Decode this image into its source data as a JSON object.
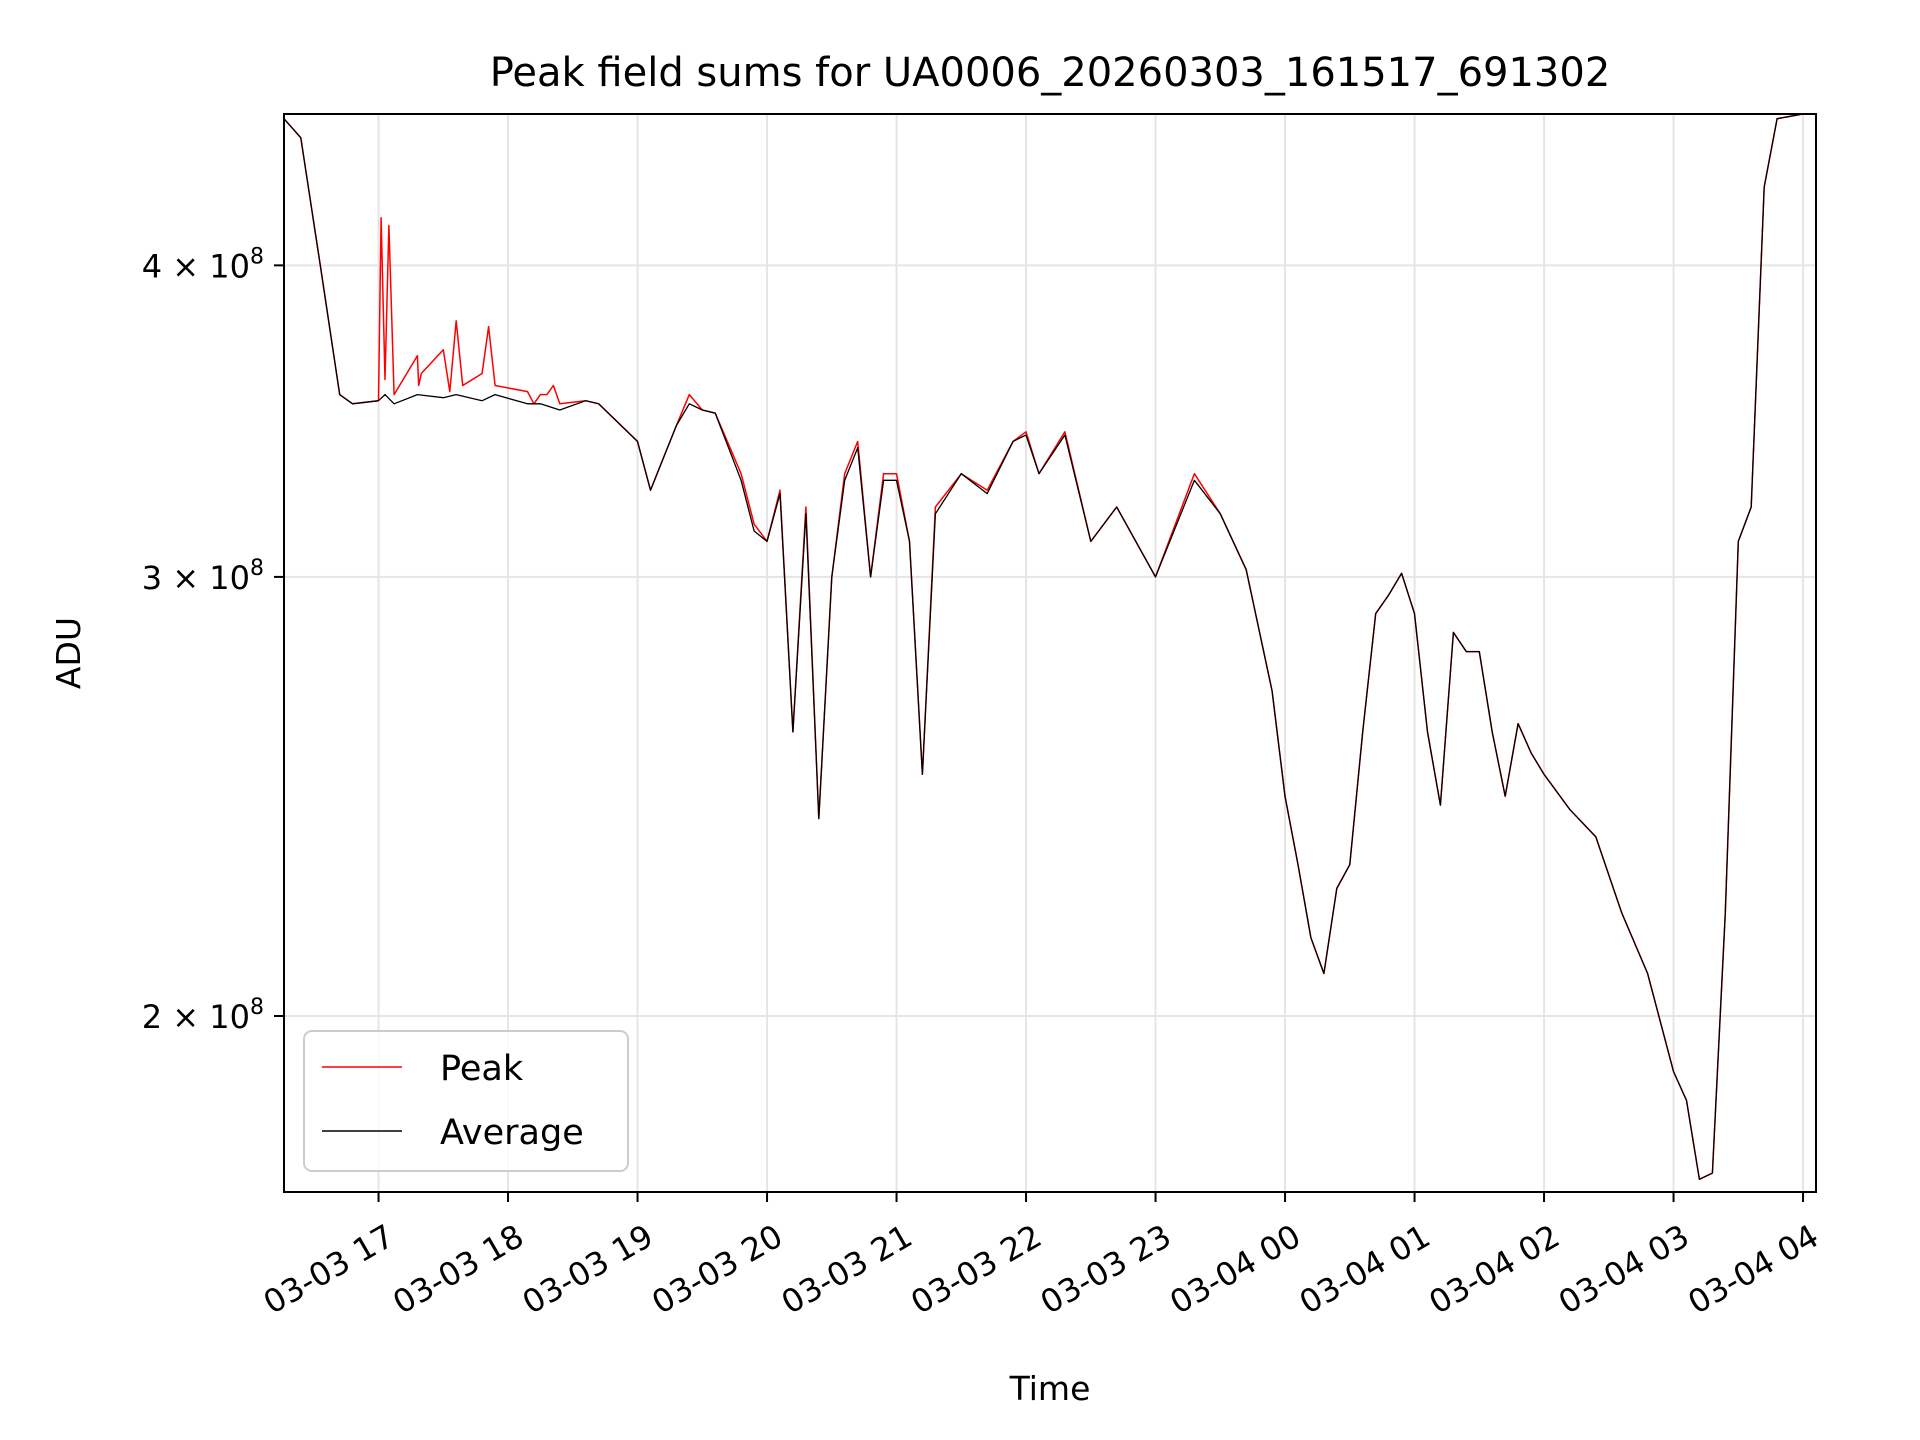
{
  "chart_data": {
    "type": "line",
    "title": "Peak field sums for UA0006_20260303_161517_691302",
    "xlabel": "Time",
    "ylabel": "ADU",
    "yscale": "log",
    "grid": true,
    "legend_position": "lower-left",
    "x_range_hours": [
      -0.73,
      11.1
    ],
    "ylim": [
      170000000,
      460000000
    ],
    "x_ticks": [
      {
        "label": "03-03 17",
        "value": 0
      },
      {
        "label": "03-03 18",
        "value": 1
      },
      {
        "label": "03-03 19",
        "value": 2
      },
      {
        "label": "03-03 20",
        "value": 3
      },
      {
        "label": "03-03 21",
        "value": 4
      },
      {
        "label": "03-03 22",
        "value": 5
      },
      {
        "label": "03-03 23",
        "value": 6
      },
      {
        "label": "03-04 00",
        "value": 7
      },
      {
        "label": "03-04 01",
        "value": 8
      },
      {
        "label": "03-04 02",
        "value": 9
      },
      {
        "label": "03-04 03",
        "value": 10
      },
      {
        "label": "03-04 04",
        "value": 11
      }
    ],
    "y_ticks": [
      {
        "label_mantissa": "2 × 10",
        "label_exp": "8",
        "value": 200000000
      },
      {
        "label_mantissa": "3 × 10",
        "label_exp": "8",
        "value": 300000000
      },
      {
        "label_mantissa": "4 × 10",
        "label_exp": "8",
        "value": 400000000
      }
    ],
    "series": [
      {
        "name": "Peak",
        "color": "#ff0000",
        "x": [
          -0.73,
          -0.6,
          -0.45,
          -0.3,
          -0.2,
          0,
          0.02,
          0.05,
          0.08,
          0.12,
          0.3,
          0.31,
          0.33,
          0.5,
          0.55,
          0.6,
          0.65,
          0.8,
          0.85,
          0.9,
          1.15,
          1.2,
          1.25,
          1.3,
          1.35,
          1.4,
          1.6,
          1.7,
          2.0,
          2.1,
          2.3,
          2.4,
          2.5,
          2.6,
          2.8,
          2.9,
          3.0,
          3.1,
          3.2,
          3.3,
          3.4,
          3.5,
          3.6,
          3.7,
          3.8,
          3.9,
          4.0,
          4.1,
          4.2,
          4.3,
          4.5,
          4.7,
          4.9,
          5.0,
          5.1,
          5.3,
          5.5,
          5.7,
          6.0,
          6.3,
          6.5,
          6.7,
          6.9,
          7.0,
          7.1,
          7.2,
          7.3,
          7.4,
          7.5,
          7.6,
          7.7,
          7.8,
          7.9,
          8.0,
          8.1,
          8.2,
          8.3,
          8.4,
          8.5,
          8.6,
          8.7,
          8.8,
          8.9,
          9.0,
          9.2,
          9.4,
          9.6,
          9.8,
          10.0,
          10.1,
          10.2,
          10.3,
          10.4,
          10.5,
          10.6,
          10.7,
          10.8,
          11.0,
          11.1
        ],
        "y": [
          458000000,
          450000000,
          400000000,
          355000000,
          352000000,
          353000000,
          418000000,
          360000000,
          415000000,
          355000000,
          368000000,
          358000000,
          362000000,
          370000000,
          356000000,
          380000000,
          358000000,
          362000000,
          378000000,
          358000000,
          356000000,
          352000000,
          355000000,
          355000000,
          358000000,
          352000000,
          353000000,
          352000000,
          340000000,
          325000000,
          345000000,
          355000000,
          350000000,
          349000000,
          330000000,
          315000000,
          310000000,
          325000000,
          260000000,
          320000000,
          240000000,
          300000000,
          330000000,
          340000000,
          300000000,
          330000000,
          330000000,
          310000000,
          250000000,
          320000000,
          330000000,
          325000000,
          340000000,
          343000000,
          330000000,
          343000000,
          310000000,
          320000000,
          300000000,
          330000000,
          318000000,
          302000000,
          270000000,
          245000000,
          230000000,
          215000000,
          208000000,
          225000000,
          230000000,
          260000000,
          290000000,
          295000000,
          301000000,
          290000000,
          260000000,
          243000000,
          285000000,
          280000000,
          280000000,
          260000000,
          245000000,
          262000000,
          255000000,
          250000000,
          242000000,
          236000000,
          220000000,
          208000000,
          190000000,
          185000000,
          172000000,
          173000000,
          220000000,
          310000000,
          320000000,
          430000000,
          458000000,
          460000000,
          460000000
        ]
      },
      {
        "name": "Average",
        "color": "#000000",
        "x": [
          -0.73,
          -0.6,
          -0.45,
          -0.3,
          -0.2,
          0,
          0.05,
          0.12,
          0.3,
          0.5,
          0.6,
          0.8,
          0.9,
          1.15,
          1.25,
          1.4,
          1.6,
          1.7,
          2.0,
          2.1,
          2.3,
          2.4,
          2.5,
          2.6,
          2.8,
          2.9,
          3.0,
          3.1,
          3.2,
          3.3,
          3.4,
          3.5,
          3.6,
          3.7,
          3.8,
          3.9,
          4.0,
          4.1,
          4.2,
          4.3,
          4.5,
          4.7,
          4.9,
          5.0,
          5.1,
          5.3,
          5.5,
          5.7,
          6.0,
          6.3,
          6.5,
          6.7,
          6.9,
          7.0,
          7.1,
          7.2,
          7.3,
          7.4,
          7.5,
          7.6,
          7.7,
          7.8,
          7.9,
          8.0,
          8.1,
          8.2,
          8.3,
          8.4,
          8.5,
          8.6,
          8.7,
          8.8,
          8.9,
          9.0,
          9.2,
          9.4,
          9.6,
          9.8,
          10.0,
          10.1,
          10.2,
          10.3,
          10.4,
          10.5,
          10.6,
          10.7,
          10.8,
          11.0,
          11.1
        ],
        "y": [
          458000000,
          450000000,
          400000000,
          355000000,
          352000000,
          353000000,
          355000000,
          352000000,
          355000000,
          354000000,
          355000000,
          353000000,
          355000000,
          352000000,
          352000000,
          350000000,
          353000000,
          352000000,
          340000000,
          325000000,
          345000000,
          352000000,
          350000000,
          349000000,
          328000000,
          313000000,
          310000000,
          324000000,
          260000000,
          318000000,
          240000000,
          300000000,
          328000000,
          338000000,
          300000000,
          328000000,
          328000000,
          310000000,
          250000000,
          318000000,
          330000000,
          324000000,
          340000000,
          342000000,
          330000000,
          342000000,
          310000000,
          320000000,
          300000000,
          328000000,
          318000000,
          302000000,
          270000000,
          245000000,
          230000000,
          215000000,
          208000000,
          225000000,
          230000000,
          260000000,
          290000000,
          295000000,
          301000000,
          290000000,
          260000000,
          243000000,
          285000000,
          280000000,
          280000000,
          260000000,
          245000000,
          262000000,
          255000000,
          250000000,
          242000000,
          236000000,
          220000000,
          208000000,
          190000000,
          185000000,
          172000000,
          173000000,
          220000000,
          310000000,
          320000000,
          430000000,
          458000000,
          460000000,
          460000000
        ]
      }
    ]
  }
}
